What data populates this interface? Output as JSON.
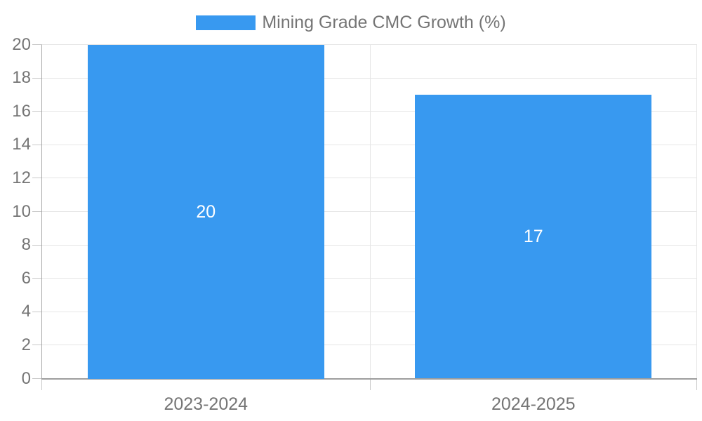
{
  "legend": {
    "label": "Mining Grade CMC Growth (%)"
  },
  "colors": {
    "bar": "#3899f0",
    "axis_text": "#757575",
    "bar_label_text": "#ffffff",
    "grid": "#e6e6e6",
    "tick": "#c9c9c9",
    "axis_line": "#a9a9a9",
    "baseline": "#9e9e9e",
    "background": "#ffffff"
  },
  "chart_data": {
    "type": "bar",
    "categories": [
      "2023-2024",
      "2024-2025"
    ],
    "series": [
      {
        "name": "Mining Grade CMC Growth (%)",
        "values": [
          20,
          17
        ]
      }
    ],
    "bar_labels": [
      "20",
      "17"
    ],
    "ylim": [
      0,
      20
    ],
    "yticks": [
      0,
      2,
      4,
      6,
      8,
      10,
      12,
      14,
      16,
      18,
      20
    ],
    "grid": true,
    "legend_position": "top"
  }
}
